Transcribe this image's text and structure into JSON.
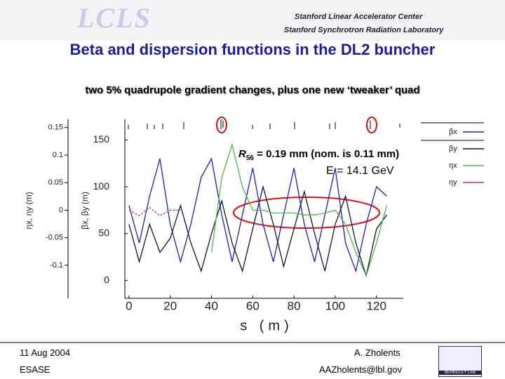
{
  "header": {
    "logo": "LCLS",
    "institution_1": "Stanford Linear Accelerator Center",
    "institution_2": "Stanford Synchrotron Radiation Laboratory"
  },
  "slide": {
    "title": "Beta and dispersion functions in the DL2 buncher",
    "subtitle": "two 5% quadrupole gradient changes, plus one new ‘tweaker’ quad"
  },
  "chart_data": {
    "type": "line",
    "annotation_1": {
      "symbol": "R",
      "subscript": "56",
      "text": " = 0.19 mm (nom. is 0.11 mm)"
    },
    "annotation_2": "E = 14.1 GeV",
    "xlabel": "s (m)",
    "ylabel": "βx, βy (m)",
    "y2label": "ηx, ηy (m)",
    "xlim": [
      -2,
      133
    ],
    "xticks": [
      0,
      20,
      40,
      60,
      80,
      100,
      120
    ],
    "ylim": [
      -19,
      172
    ],
    "yticks": [
      0,
      50,
      100,
      150
    ],
    "y2lim": [
      -0.16,
      0.165
    ],
    "y2ticks": [
      -0.1,
      -0.05,
      0,
      0.05,
      0.1,
      0.15
    ],
    "x": [
      0,
      5,
      10,
      15,
      20,
      25,
      30,
      35,
      40,
      45,
      50,
      55,
      60,
      65,
      70,
      75,
      80,
      85,
      90,
      95,
      100,
      105,
      110,
      115,
      120,
      125
    ],
    "series": [
      {
        "name": "βx",
        "color": "#1c1ccc",
        "values": [
          80,
          40,
          90,
          130,
          60,
          20,
          60,
          110,
          130,
          70,
          20,
          70,
          120,
          60,
          20,
          70,
          120,
          60,
          20,
          70,
          120,
          40,
          10,
          60,
          100,
          90
        ]
      },
      {
        "name": "βy",
        "color": "#111133",
        "values": [
          60,
          20,
          60,
          30,
          45,
          80,
          40,
          10,
          50,
          85,
          40,
          10,
          55,
          100,
          60,
          15,
          55,
          95,
          50,
          10,
          60,
          90,
          40,
          5,
          55,
          70
        ]
      },
      {
        "name": "ηx",
        "color": "#44bb44",
        "values": [
          null,
          null,
          null,
          null,
          null,
          null,
          null,
          null,
          30,
          110,
          145,
          100,
          75,
          75,
          72,
          72,
          72,
          70,
          70,
          72,
          75,
          60,
          30,
          5,
          40,
          80
        ]
      },
      {
        "name": "ηy",
        "color": "#cc3366",
        "axis": "y2",
        "values": [
          0.0,
          -0.01,
          0.005,
          -0.01,
          0.0,
          0.0,
          null,
          null,
          null,
          null,
          null,
          null,
          null,
          null,
          null,
          null,
          null,
          null,
          null,
          null,
          null,
          null,
          null,
          null,
          null,
          null
        ]
      }
    ]
  },
  "footer": {
    "date": "11 Aug 2004",
    "topic": "ESASE",
    "author": "A. Zholents",
    "email": "AAZholents@lbl.gov",
    "lab": "BERKELEY LAB"
  }
}
